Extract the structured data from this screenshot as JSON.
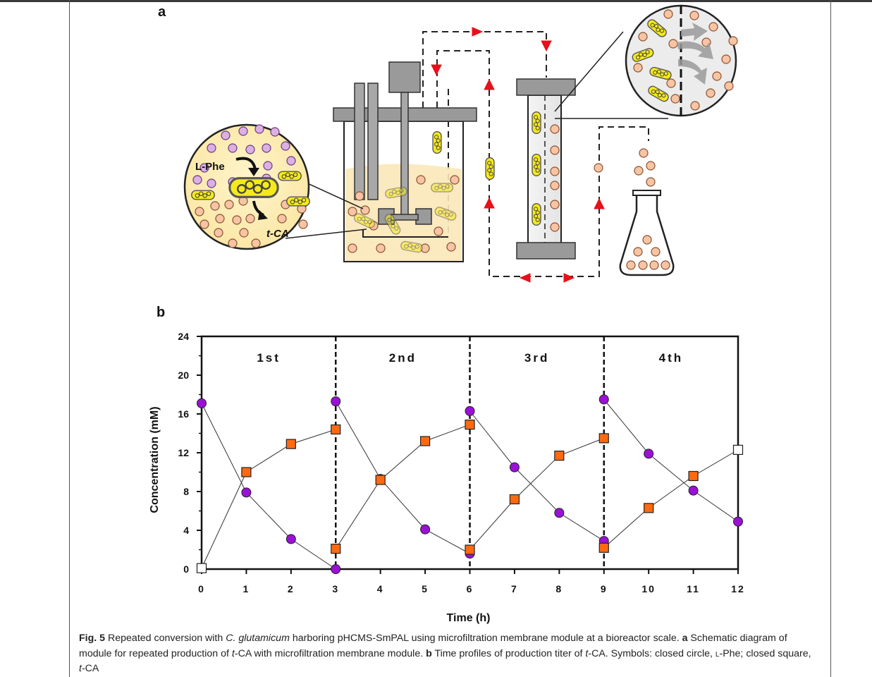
{
  "panel_labels": {
    "a": "a",
    "b": "b"
  },
  "schematic": {
    "l_phe_label": "L-Phe",
    "t_ca_label": "t-CA"
  },
  "chart_data": {
    "type": "scatter",
    "xlabel": "Time (h)",
    "ylabel": "Concentration (mM)",
    "xlim": [
      0,
      12
    ],
    "ylim": [
      0,
      24
    ],
    "x_ticks": [
      0,
      1,
      2,
      3,
      4,
      5,
      6,
      7,
      8,
      9,
      10,
      11,
      12
    ],
    "x_tick_labels": [
      "0",
      "1",
      "2",
      "3",
      "4",
      "5",
      "6",
      "7",
      "8",
      "9",
      "10",
      "11",
      "12"
    ],
    "y_ticks": [
      0,
      4,
      8,
      12,
      16,
      20,
      24
    ],
    "y_tick_labels": [
      "0",
      "4",
      "8",
      "12",
      "16",
      "20",
      "24"
    ],
    "grid": false,
    "cycle_dividers": [
      3,
      6,
      9
    ],
    "cycle_labels": [
      {
        "x": 1.5,
        "text": "1st"
      },
      {
        "x": 4.5,
        "text": "2nd"
      },
      {
        "x": 7.5,
        "text": "3rd"
      },
      {
        "x": 10.5,
        "text": "4th"
      }
    ],
    "series": [
      {
        "marker": "circle",
        "color": "#9b10d8",
        "segments": [
          [
            [
              0,
              17.1
            ],
            [
              1,
              7.9
            ],
            [
              2,
              3.1
            ],
            [
              3,
              0.0
            ]
          ],
          [
            [
              3,
              17.3
            ],
            [
              4,
              9.3
            ],
            [
              5,
              4.1
            ],
            [
              6,
              1.6
            ]
          ],
          [
            [
              6,
              16.3
            ],
            [
              7,
              10.5
            ],
            [
              8,
              5.8
            ],
            [
              9,
              2.9
            ]
          ],
          [
            [
              9,
              17.5
            ],
            [
              10,
              11.9
            ],
            [
              11,
              8.1
            ],
            [
              12,
              4.9
            ]
          ]
        ]
      },
      {
        "marker": "square",
        "color": "#ff6a10",
        "segments": [
          [
            [
              0,
              0.1
            ],
            [
              1,
              10.0
            ],
            [
              2,
              12.9
            ],
            [
              3,
              14.4
            ]
          ],
          [
            [
              3,
              2.1
            ],
            [
              4,
              9.2
            ],
            [
              5,
              13.2
            ],
            [
              6,
              14.9
            ]
          ],
          [
            [
              6,
              2.0
            ],
            [
              7,
              7.2
            ],
            [
              8,
              11.7
            ],
            [
              9,
              13.5
            ]
          ],
          [
            [
              9,
              2.2
            ],
            [
              10,
              6.3
            ],
            [
              11,
              9.6
            ],
            [
              12,
              12.3
            ]
          ]
        ],
        "open_points": [
          [
            0,
            0.1
          ],
          [
            12,
            12.3
          ]
        ]
      }
    ]
  },
  "caption": {
    "fig_label": "Fig. 5",
    "text1": "Repeated conversion with ",
    "organism": "C. glutamicum",
    "text2": " harboring pHCMS-SmPAL using microfiltration membrane module at a bioreactor scale. ",
    "a_label": "a",
    "text3": " Schematic diagram of module for repeated production of ",
    "tca1": "t",
    "text4": "-CA with microfiltration membrane module. ",
    "b_label": "b",
    "text5": " Time profiles of production titer of ",
    "tca2": "t",
    "text6": "-CA. Symbols: closed circle, ",
    "lphe_l": "l",
    "text7": "-Phe; closed square, ",
    "tca3": "t",
    "text8": "-CA"
  }
}
